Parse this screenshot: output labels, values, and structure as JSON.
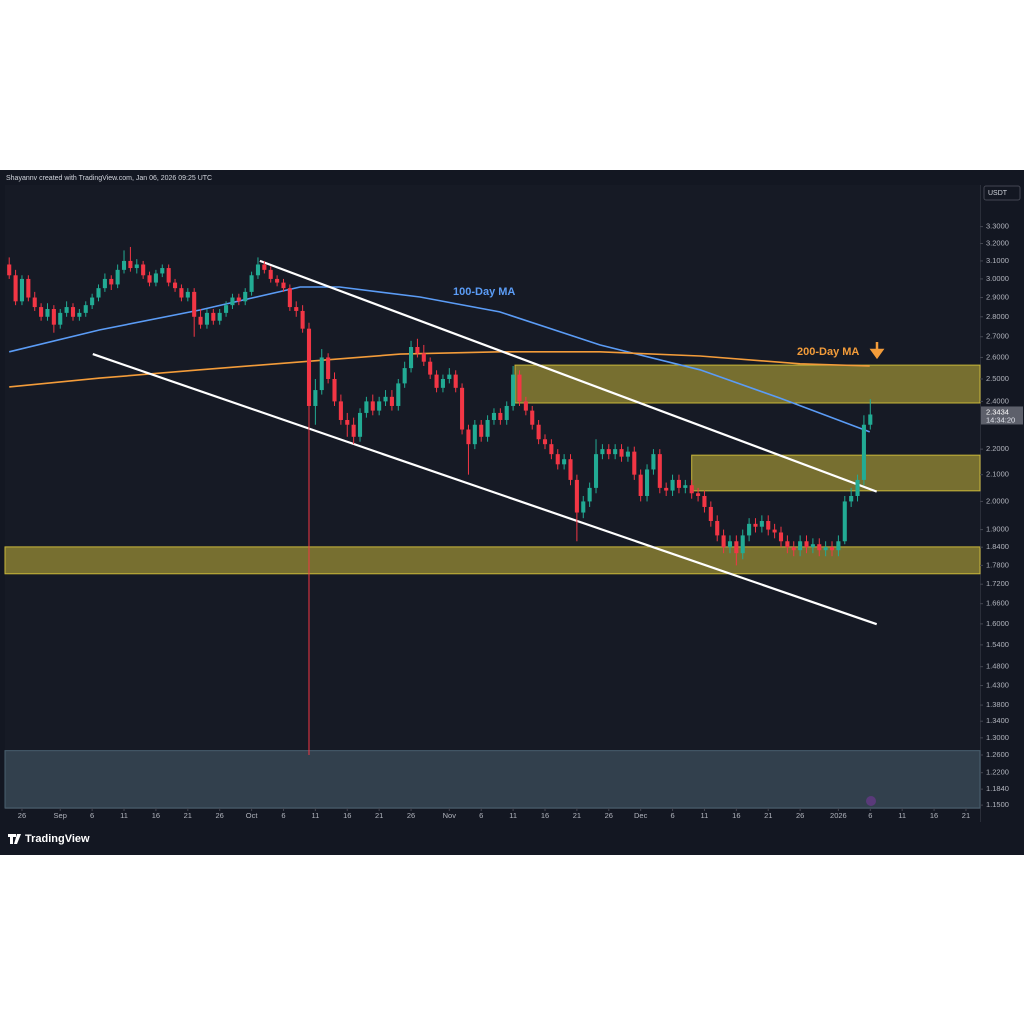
{
  "header": {
    "attribution": "Shayannv created with TradingView.com, Jan 06, 2026 09:25 UTC",
    "logo": "TradingView"
  },
  "chart_data": {
    "type": "candlestick",
    "log_scale": true,
    "grid": false,
    "currency": "USDT",
    "up_color": "#22ab94",
    "down_color": "#f23645",
    "last_price": 2.3434,
    "countdown": "14:34:20",
    "ylim": [
      1.144,
      3.56
    ],
    "yticks": [
      {
        "value": 3.3,
        "label": "3.3000"
      },
      {
        "value": 3.2,
        "label": "3.2000"
      },
      {
        "value": 3.1,
        "label": "3.1000"
      },
      {
        "value": 3.0,
        "label": "3.0000"
      },
      {
        "value": 2.9,
        "label": "2.9000"
      },
      {
        "value": 2.8,
        "label": "2.8000"
      },
      {
        "value": 2.7,
        "label": "2.7000"
      },
      {
        "value": 2.6,
        "label": "2.6000"
      },
      {
        "value": 2.5,
        "label": "2.5000"
      },
      {
        "value": 2.4,
        "label": "2.4000"
      },
      {
        "value": 2.2,
        "label": "2.2000"
      },
      {
        "value": 2.1,
        "label": "2.1000"
      },
      {
        "value": 2.0,
        "label": "2.0000"
      },
      {
        "value": 1.9,
        "label": "1.9000"
      },
      {
        "value": 1.84,
        "label": "1.8400"
      },
      {
        "value": 1.78,
        "label": "1.7800"
      },
      {
        "value": 1.72,
        "label": "1.7200"
      },
      {
        "value": 1.66,
        "label": "1.6600"
      },
      {
        "value": 1.6,
        "label": "1.6000"
      },
      {
        "value": 1.54,
        "label": "1.5400"
      },
      {
        "value": 1.48,
        "label": "1.4800"
      },
      {
        "value": 1.43,
        "label": "1.4300"
      },
      {
        "value": 1.38,
        "label": "1.3800"
      },
      {
        "value": 1.34,
        "label": "1.3400"
      },
      {
        "value": 1.3,
        "label": "1.3000"
      },
      {
        "value": 1.26,
        "label": "1.2600"
      },
      {
        "value": 1.22,
        "label": "1.2200"
      },
      {
        "value": 1.184,
        "label": "1.1840"
      },
      {
        "value": 1.15,
        "label": "1.1500"
      }
    ],
    "xlim": [
      -0.66,
      152.2
    ],
    "xticks": [
      {
        "value": 2,
        "label": "26"
      },
      {
        "value": 8,
        "label": "Sep"
      },
      {
        "value": 13,
        "label": "6"
      },
      {
        "value": 18,
        "label": "11"
      },
      {
        "value": 23,
        "label": "16"
      },
      {
        "value": 28,
        "label": "21"
      },
      {
        "value": 33,
        "label": "26"
      },
      {
        "value": 38,
        "label": "Oct"
      },
      {
        "value": 43,
        "label": "6"
      },
      {
        "value": 48,
        "label": "11"
      },
      {
        "value": 53,
        "label": "16"
      },
      {
        "value": 58,
        "label": "21"
      },
      {
        "value": 63,
        "label": "26"
      },
      {
        "value": 69,
        "label": "Nov"
      },
      {
        "value": 74,
        "label": "6"
      },
      {
        "value": 79,
        "label": "11"
      },
      {
        "value": 84,
        "label": "16"
      },
      {
        "value": 89,
        "label": "21"
      },
      {
        "value": 94,
        "label": "26"
      },
      {
        "value": 99,
        "label": "Dec"
      },
      {
        "value": 104,
        "label": "6"
      },
      {
        "value": 109,
        "label": "11"
      },
      {
        "value": 114,
        "label": "16"
      },
      {
        "value": 119,
        "label": "21"
      },
      {
        "value": 124,
        "label": "26"
      },
      {
        "value": 130,
        "label": "2026"
      },
      {
        "value": 135,
        "label": "6"
      },
      {
        "value": 140,
        "label": "11"
      },
      {
        "value": 145,
        "label": "16"
      },
      {
        "value": 150,
        "label": "21"
      }
    ],
    "candles": [
      [
        3.08,
        3.12,
        3.0,
        3.02
      ],
      [
        3.02,
        3.05,
        2.86,
        2.88
      ],
      [
        2.88,
        3.02,
        2.86,
        3.0
      ],
      [
        3.0,
        3.02,
        2.88,
        2.9
      ],
      [
        2.9,
        2.93,
        2.83,
        2.85
      ],
      [
        2.85,
        2.87,
        2.78,
        2.8
      ],
      [
        2.8,
        2.87,
        2.78,
        2.84
      ],
      [
        2.84,
        2.86,
        2.72,
        2.76
      ],
      [
        2.76,
        2.84,
        2.74,
        2.82
      ],
      [
        2.82,
        2.88,
        2.8,
        2.85
      ],
      [
        2.85,
        2.87,
        2.78,
        2.8
      ],
      [
        2.8,
        2.84,
        2.78,
        2.82
      ],
      [
        2.82,
        2.88,
        2.8,
        2.86
      ],
      [
        2.86,
        2.92,
        2.84,
        2.9
      ],
      [
        2.9,
        2.97,
        2.88,
        2.95
      ],
      [
        2.95,
        3.03,
        2.93,
        3.0
      ],
      [
        3.0,
        3.02,
        2.94,
        2.97
      ],
      [
        2.97,
        3.08,
        2.95,
        3.05
      ],
      [
        3.05,
        3.16,
        3.03,
        3.1
      ],
      [
        3.1,
        3.18,
        3.04,
        3.06
      ],
      [
        3.06,
        3.11,
        3.03,
        3.08
      ],
      [
        3.08,
        3.1,
        3.0,
        3.02
      ],
      [
        3.02,
        3.04,
        2.96,
        2.98
      ],
      [
        2.98,
        3.05,
        2.96,
        3.03
      ],
      [
        3.03,
        3.08,
        3.01,
        3.06
      ],
      [
        3.06,
        3.08,
        2.96,
        2.98
      ],
      [
        2.98,
        3.0,
        2.93,
        2.95
      ],
      [
        2.95,
        2.97,
        2.88,
        2.9
      ],
      [
        2.9,
        2.95,
        2.88,
        2.93
      ],
      [
        2.93,
        2.95,
        2.7,
        2.8
      ],
      [
        2.8,
        2.84,
        2.74,
        2.76
      ],
      [
        2.76,
        2.84,
        2.74,
        2.82
      ],
      [
        2.82,
        2.84,
        2.76,
        2.78
      ],
      [
        2.78,
        2.84,
        2.76,
        2.82
      ],
      [
        2.82,
        2.88,
        2.8,
        2.86
      ],
      [
        2.86,
        2.92,
        2.84,
        2.9
      ],
      [
        2.9,
        2.92,
        2.86,
        2.88
      ],
      [
        2.88,
        2.95,
        2.86,
        2.93
      ],
      [
        2.93,
        3.04,
        2.91,
        3.02
      ],
      [
        3.02,
        3.12,
        3.0,
        3.08
      ],
      [
        3.08,
        3.1,
        3.03,
        3.05
      ],
      [
        3.05,
        3.07,
        2.98,
        3.0
      ],
      [
        3.0,
        3.02,
        2.96,
        2.98
      ],
      [
        2.98,
        3.0,
        2.93,
        2.95
      ],
      [
        2.95,
        2.97,
        2.83,
        2.85
      ],
      [
        2.85,
        2.88,
        2.8,
        2.83
      ],
      [
        2.83,
        2.86,
        2.72,
        2.74
      ],
      [
        2.74,
        2.77,
        1.26,
        2.38
      ],
      [
        2.38,
        2.5,
        2.3,
        2.45
      ],
      [
        2.45,
        2.64,
        2.43,
        2.6
      ],
      [
        2.6,
        2.62,
        2.48,
        2.5
      ],
      [
        2.5,
        2.53,
        2.38,
        2.4
      ],
      [
        2.4,
        2.43,
        2.3,
        2.32
      ],
      [
        2.32,
        2.35,
        2.25,
        2.3
      ],
      [
        2.3,
        2.33,
        2.22,
        2.25
      ],
      [
        2.25,
        2.37,
        2.23,
        2.35
      ],
      [
        2.35,
        2.42,
        2.33,
        2.4
      ],
      [
        2.4,
        2.43,
        2.34,
        2.36
      ],
      [
        2.36,
        2.42,
        2.34,
        2.4
      ],
      [
        2.4,
        2.45,
        2.38,
        2.42
      ],
      [
        2.42,
        2.45,
        2.36,
        2.38
      ],
      [
        2.38,
        2.5,
        2.36,
        2.48
      ],
      [
        2.48,
        2.58,
        2.46,
        2.55
      ],
      [
        2.55,
        2.68,
        2.53,
        2.65
      ],
      [
        2.65,
        2.69,
        2.6,
        2.62
      ],
      [
        2.62,
        2.66,
        2.56,
        2.58
      ],
      [
        2.58,
        2.6,
        2.5,
        2.52
      ],
      [
        2.52,
        2.54,
        2.44,
        2.46
      ],
      [
        2.46,
        2.52,
        2.44,
        2.5
      ],
      [
        2.5,
        2.55,
        2.48,
        2.52
      ],
      [
        2.52,
        2.54,
        2.44,
        2.46
      ],
      [
        2.46,
        2.48,
        2.26,
        2.28
      ],
      [
        2.28,
        2.3,
        2.1,
        2.22
      ],
      [
        2.22,
        2.32,
        2.2,
        2.3
      ],
      [
        2.3,
        2.32,
        2.23,
        2.25
      ],
      [
        2.25,
        2.34,
        2.23,
        2.32
      ],
      [
        2.32,
        2.37,
        2.3,
        2.35
      ],
      [
        2.35,
        2.37,
        2.3,
        2.32
      ],
      [
        2.32,
        2.4,
        2.3,
        2.38
      ],
      [
        2.38,
        2.56,
        2.36,
        2.52
      ],
      [
        2.52,
        2.54,
        2.38,
        2.4
      ],
      [
        2.4,
        2.42,
        2.34,
        2.36
      ],
      [
        2.36,
        2.38,
        2.28,
        2.3
      ],
      [
        2.3,
        2.32,
        2.22,
        2.24
      ],
      [
        2.24,
        2.26,
        2.2,
        2.22
      ],
      [
        2.22,
        2.24,
        2.16,
        2.18
      ],
      [
        2.18,
        2.2,
        2.12,
        2.14
      ],
      [
        2.14,
        2.18,
        2.12,
        2.16
      ],
      [
        2.16,
        2.18,
        2.06,
        2.08
      ],
      [
        2.08,
        2.1,
        1.86,
        1.96
      ],
      [
        1.96,
        2.02,
        1.94,
        2.0
      ],
      [
        2.0,
        2.07,
        1.98,
        2.05
      ],
      [
        2.05,
        2.24,
        2.03,
        2.18
      ],
      [
        2.18,
        2.22,
        2.16,
        2.2
      ],
      [
        2.2,
        2.22,
        2.16,
        2.18
      ],
      [
        2.18,
        2.22,
        2.16,
        2.2
      ],
      [
        2.2,
        2.22,
        2.15,
        2.17
      ],
      [
        2.17,
        2.21,
        2.15,
        2.19
      ],
      [
        2.19,
        2.21,
        2.08,
        2.1
      ],
      [
        2.1,
        2.12,
        2.0,
        2.02
      ],
      [
        2.02,
        2.14,
        2.0,
        2.12
      ],
      [
        2.12,
        2.2,
        2.1,
        2.18
      ],
      [
        2.18,
        2.2,
        2.03,
        2.05
      ],
      [
        2.05,
        2.07,
        2.02,
        2.04
      ],
      [
        2.04,
        2.1,
        2.02,
        2.08
      ],
      [
        2.08,
        2.1,
        2.03,
        2.05
      ],
      [
        2.05,
        2.08,
        2.03,
        2.06
      ],
      [
        2.06,
        2.08,
        2.01,
        2.03
      ],
      [
        2.03,
        2.05,
        2.0,
        2.02
      ],
      [
        2.02,
        2.04,
        1.96,
        1.98
      ],
      [
        1.98,
        2.0,
        1.91,
        1.93
      ],
      [
        1.93,
        1.95,
        1.86,
        1.88
      ],
      [
        1.88,
        1.9,
        1.82,
        1.84
      ],
      [
        1.84,
        1.88,
        1.82,
        1.86
      ],
      [
        1.86,
        1.88,
        1.78,
        1.82
      ],
      [
        1.82,
        1.9,
        1.8,
        1.88
      ],
      [
        1.88,
        1.94,
        1.86,
        1.92
      ],
      [
        1.92,
        1.94,
        1.89,
        1.91
      ],
      [
        1.91,
        1.95,
        1.89,
        1.93
      ],
      [
        1.93,
        1.95,
        1.88,
        1.9
      ],
      [
        1.9,
        1.92,
        1.87,
        1.89
      ],
      [
        1.89,
        1.91,
        1.84,
        1.86
      ],
      [
        1.86,
        1.88,
        1.82,
        1.84
      ],
      [
        1.84,
        1.86,
        1.81,
        1.83
      ],
      [
        1.83,
        1.88,
        1.81,
        1.86
      ],
      [
        1.86,
        1.88,
        1.82,
        1.84
      ],
      [
        1.84,
        1.87,
        1.82,
        1.85
      ],
      [
        1.85,
        1.87,
        1.81,
        1.83
      ],
      [
        1.83,
        1.86,
        1.81,
        1.84
      ],
      [
        1.84,
        1.86,
        1.81,
        1.83
      ],
      [
        1.83,
        1.88,
        1.81,
        1.86
      ],
      [
        1.86,
        2.02,
        1.85,
        2.0
      ],
      [
        2.0,
        2.05,
        1.98,
        2.02
      ],
      [
        2.02,
        2.1,
        2.0,
        2.08
      ],
      [
        2.08,
        2.34,
        2.06,
        2.3
      ],
      [
        2.3,
        2.41,
        2.28,
        2.3434
      ]
    ],
    "series": [
      {
        "name": "100-Day MA",
        "color": "#5b9cf6",
        "x": [
          0,
          14.2,
          29.9,
          45.6,
          51.8,
          64.4,
          76.9,
          92.6,
          108.3,
          120.8,
          134.9
        ],
        "values": [
          2.627,
          2.734,
          2.835,
          2.956,
          2.956,
          2.903,
          2.825,
          2.66,
          2.542,
          2.415,
          2.27
        ]
      },
      {
        "name": "200-Day MA",
        "color": "#f39c3a",
        "x": [
          0,
          14.2,
          29.9,
          45.6,
          61.3,
          76.9,
          92.6,
          108.3,
          124.0,
          134.9
        ],
        "values": [
          2.464,
          2.504,
          2.542,
          2.579,
          2.616,
          2.627,
          2.627,
          2.607,
          2.57,
          2.56
        ]
      }
    ],
    "trendlines": [
      {
        "color": "#ffffff",
        "x": [
          39.3,
          136.0
        ],
        "values": [
          3.1,
          2.036
        ]
      },
      {
        "color": "#ffffff",
        "x": [
          13.1,
          136.0
        ],
        "values": [
          2.616,
          1.599
        ]
      }
    ],
    "zones": [
      {
        "color": "#c9b73a",
        "from": 79.3,
        "top": 2.564,
        "bottom": 2.393
      },
      {
        "color": "#c9b73a",
        "from": 107.0,
        "top": 2.176,
        "bottom": 2.039
      },
      {
        "color": "#c9b73a",
        "top": 1.841,
        "bottom": 1.753
      },
      {
        "color": "#4a6070",
        "top": 1.27,
        "bottom": 1.144
      }
    ]
  }
}
